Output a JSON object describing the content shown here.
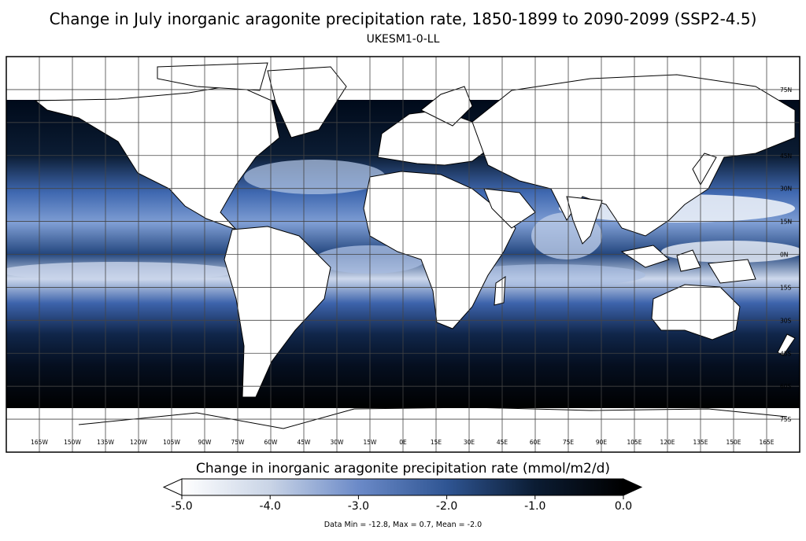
{
  "title": "Change in July inorganic aragonite precipitation rate, 1850-1899 to 2090-2099 (SSP2-4.5)",
  "subtitle": "UKESM1-0-LL",
  "map": {
    "lat_labels": [
      "75N",
      "45N",
      "30N",
      "15N",
      "0N",
      "15S",
      "30S",
      "45S",
      "60S",
      "75S"
    ],
    "lon_labels": [
      "165W",
      "150W",
      "135W",
      "120W",
      "105W",
      "90W",
      "75W",
      "60W",
      "45W",
      "30W",
      "15W",
      "0E",
      "15E",
      "30E",
      "45E",
      "60E",
      "75E",
      "90E",
      "105E",
      "120E",
      "135E",
      "150E",
      "165E"
    ]
  },
  "colorbar": {
    "title": "Change in inorganic aragonite precipitation rate (mmol/m2/d)",
    "ticks": [
      "-5.0",
      "-4.0",
      "-3.0",
      "-2.0",
      "-1.0",
      "0.0"
    ],
    "min": -5.0,
    "max": 0.0,
    "colors": [
      "#ffffff",
      "#c9d4e6",
      "#6b8ac8",
      "#2f5593",
      "#0b1c33",
      "#000000"
    ],
    "extend": "both"
  },
  "stats": "Data Min = -12.8, Max = 0.7, Mean = -2.0"
}
